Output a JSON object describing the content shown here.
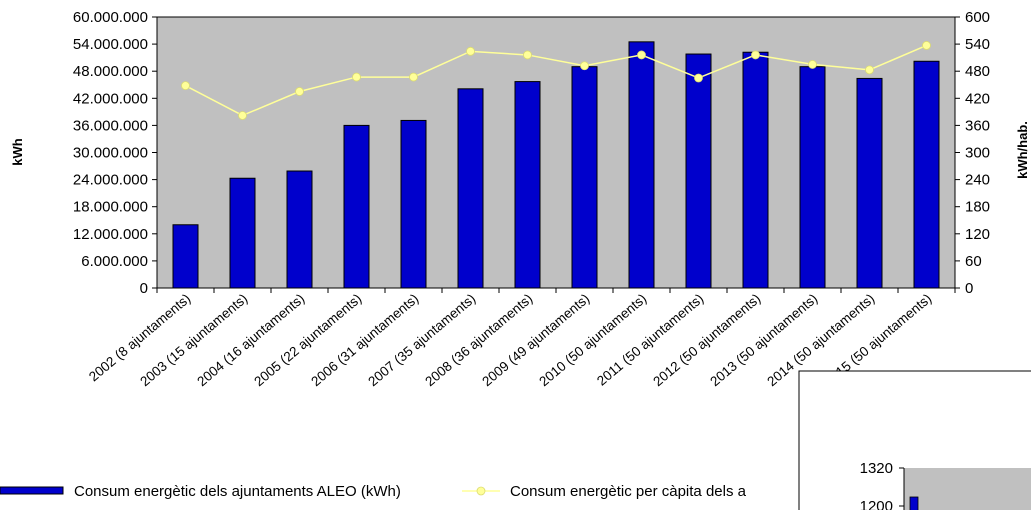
{
  "chart_data": [
    {
      "type": "bar",
      "categories": [
        "2002 (8 ajuntaments)",
        "2003 (15 ajuntaments)",
        "2004 (16 ajuntaments)",
        "2005 (22 ajuntaments)",
        "2006 (31 ajuntaments)",
        "2007 (35 ajuntaments)",
        "2008 (36 ajuntaments)",
        "2009 (49 ajuntaments)",
        "2010 (50 ajuntaments)",
        "2011 (50 ajuntaments)",
        "2012 (50 ajuntaments)",
        "2013 (50 ajuntaments)",
        "2014 (50 ajuntaments)",
        "2015 (50 ajuntaments)"
      ],
      "series": [
        {
          "name": "Consum energètic dels ajuntaments ALEO (kWh)",
          "type": "bar",
          "axis": "left",
          "color": "#0000cc",
          "values": [
            14000000,
            24300000,
            25900000,
            36000000,
            37100000,
            44100000,
            45700000,
            49000000,
            54500000,
            51800000,
            52200000,
            49000000,
            46400000,
            50200000
          ]
        },
        {
          "name": "Consum energètic per càpita dels a",
          "type": "line",
          "axis": "right",
          "color": "#ffff99",
          "values": [
            448,
            382,
            435,
            467,
            467,
            524,
            516,
            492,
            516,
            465,
            516,
            495,
            483,
            537
          ]
        }
      ],
      "ylabel": "kWh",
      "y2label": "kWh/hab.",
      "ylim": [
        0,
        60000000
      ],
      "y2lim": [
        0,
        600
      ],
      "yticks": [
        "0",
        "6.000.000",
        "12.000.000",
        "18.000.000",
        "24.000.000",
        "30.000.000",
        "36.000.000",
        "42.000.000",
        "48.000.000",
        "54.000.000",
        "60.000.000"
      ],
      "y2ticks": [
        "0",
        "60",
        "120",
        "180",
        "240",
        "300",
        "360",
        "420",
        "480",
        "540",
        "600"
      ],
      "background": "#c0c0c0",
      "grid": false,
      "legend_position": "bottom-left"
    },
    {
      "type": "bar",
      "partial": true,
      "yticks": [
        "1200",
        "1320"
      ],
      "series": [
        {
          "color": "#0000cc",
          "values_visible": [
            1200
          ]
        }
      ]
    }
  ]
}
